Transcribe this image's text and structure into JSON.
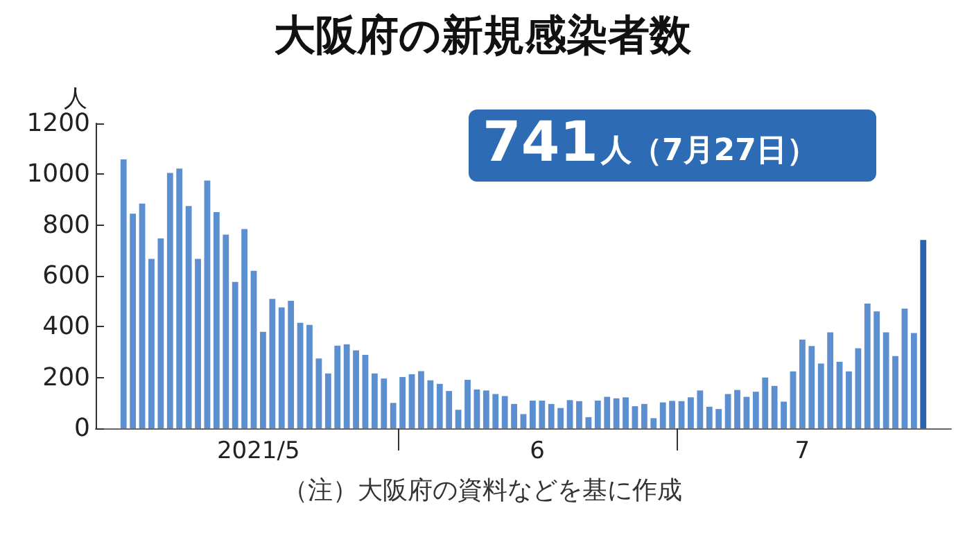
{
  "chart_data": {
    "type": "bar",
    "title": "大阪府の新規感染者数",
    "ylabel": "人",
    "annotations": [
      "741人（7月27日）",
      "（注）大阪府の資料などを基に作成"
    ],
    "x": [
      "2021-05-02",
      "2021-05-03",
      "2021-05-04",
      "2021-05-05",
      "2021-05-06",
      "2021-05-07",
      "2021-05-08",
      "2021-05-09",
      "2021-05-10",
      "2021-05-11",
      "2021-05-12",
      "2021-05-13",
      "2021-05-14",
      "2021-05-15",
      "2021-05-16",
      "2021-05-17",
      "2021-05-18",
      "2021-05-19",
      "2021-05-20",
      "2021-05-21",
      "2021-05-22",
      "2021-05-23",
      "2021-05-24",
      "2021-05-25",
      "2021-05-26",
      "2021-05-27",
      "2021-05-28",
      "2021-05-29",
      "2021-05-30",
      "2021-05-31",
      "2021-06-01",
      "2021-06-02",
      "2021-06-03",
      "2021-06-04",
      "2021-06-05",
      "2021-06-06",
      "2021-06-07",
      "2021-06-08",
      "2021-06-09",
      "2021-06-10",
      "2021-06-11",
      "2021-06-12",
      "2021-06-13",
      "2021-06-14",
      "2021-06-15",
      "2021-06-16",
      "2021-06-17",
      "2021-06-18",
      "2021-06-19",
      "2021-06-20",
      "2021-06-21",
      "2021-06-22",
      "2021-06-23",
      "2021-06-24",
      "2021-06-25",
      "2021-06-26",
      "2021-06-27",
      "2021-06-28",
      "2021-06-29",
      "2021-06-30",
      "2021-07-01",
      "2021-07-02",
      "2021-07-03",
      "2021-07-04",
      "2021-07-05",
      "2021-07-06",
      "2021-07-07",
      "2021-07-08",
      "2021-07-09",
      "2021-07-10",
      "2021-07-11",
      "2021-07-12",
      "2021-07-13",
      "2021-07-14",
      "2021-07-15",
      "2021-07-16",
      "2021-07-17",
      "2021-07-18",
      "2021-07-19",
      "2021-07-20",
      "2021-07-21",
      "2021-07-22",
      "2021-07-23",
      "2021-07-24",
      "2021-07-25",
      "2021-07-26",
      "2021-07-27"
    ],
    "values": [
      1058,
      845,
      884,
      667,
      747,
      1005,
      1022,
      875,
      667,
      975,
      851,
      762,
      576,
      784,
      620,
      380,
      509,
      476,
      502,
      415,
      407,
      275,
      216,
      325,
      331,
      307,
      289,
      216,
      196,
      100,
      202,
      213,
      225,
      189,
      175,
      147,
      73,
      191,
      153,
      149,
      135,
      127,
      96,
      56,
      109,
      109,
      96,
      80,
      111,
      107,
      44,
      109,
      124,
      118,
      122,
      87,
      96,
      40,
      102,
      108,
      107,
      122,
      149,
      85,
      76,
      135,
      151,
      124,
      144,
      200,
      167,
      105,
      224,
      349,
      324,
      255,
      378,
      262,
      224,
      315,
      491,
      460,
      378,
      284,
      471,
      375,
      741
    ],
    "colors": [
      "#5b8fd0",
      "#5b8fd0",
      "#5b8fd0",
      "#5b8fd0",
      "#5b8fd0",
      "#5b8fd0",
      "#5b8fd0",
      "#5b8fd0",
      "#5b8fd0",
      "#5b8fd0",
      "#5b8fd0",
      "#5b8fd0",
      "#5b8fd0",
      "#5b8fd0",
      "#5b8fd0",
      "#5b8fd0",
      "#5b8fd0",
      "#5b8fd0",
      "#5b8fd0",
      "#5b8fd0",
      "#5b8fd0",
      "#5b8fd0",
      "#5b8fd0",
      "#5b8fd0",
      "#5b8fd0",
      "#5b8fd0",
      "#5b8fd0",
      "#5b8fd0",
      "#5b8fd0",
      "#5b8fd0",
      "#5b8fd0",
      "#5b8fd0",
      "#5b8fd0",
      "#5b8fd0",
      "#5b8fd0",
      "#5b8fd0",
      "#5b8fd0",
      "#5b8fd0",
      "#5b8fd0",
      "#5b8fd0",
      "#5b8fd0",
      "#5b8fd0",
      "#5b8fd0",
      "#5b8fd0",
      "#5b8fd0",
      "#5b8fd0",
      "#5b8fd0",
      "#5b8fd0",
      "#5b8fd0",
      "#5b8fd0",
      "#5b8fd0",
      "#5b8fd0",
      "#5b8fd0",
      "#5b8fd0",
      "#5b8fd0",
      "#5b8fd0",
      "#5b8fd0",
      "#5b8fd0",
      "#5b8fd0",
      "#5b8fd0",
      "#5b8fd0",
      "#5b8fd0",
      "#5b8fd0",
      "#5b8fd0",
      "#5b8fd0",
      "#5b8fd0",
      "#5b8fd0",
      "#5b8fd0",
      "#5b8fd0",
      "#5b8fd0",
      "#5b8fd0",
      "#5b8fd0",
      "#5b8fd0",
      "#5b8fd0",
      "#5b8fd0",
      "#5b8fd0",
      "#5b8fd0",
      "#5b8fd0",
      "#5b8fd0",
      "#5b8fd0",
      "#5b8fd0",
      "#5b8fd0",
      "#5b8fd0",
      "#5b8fd0",
      "#5b8fd0",
      "#5b8fd0",
      "#2a62ad"
    ],
    "xlim": [
      "2021-04-29",
      "2021-07-30"
    ],
    "xticks": [
      {
        "value": "2021-05-16T12:00",
        "label": "2021/5"
      },
      {
        "value": "2021-05-31T12:00",
        "label": null
      },
      {
        "value": "2021-06-15T12:00",
        "label": "6"
      },
      {
        "value": "2021-06-30T12:00",
        "label": null
      },
      {
        "value": "2021-07-14",
        "label": "7"
      }
    ],
    "ylim": [
      0,
      1200
    ],
    "yticks": [
      0,
      200,
      400,
      600,
      800,
      1000,
      1200
    ]
  }
}
